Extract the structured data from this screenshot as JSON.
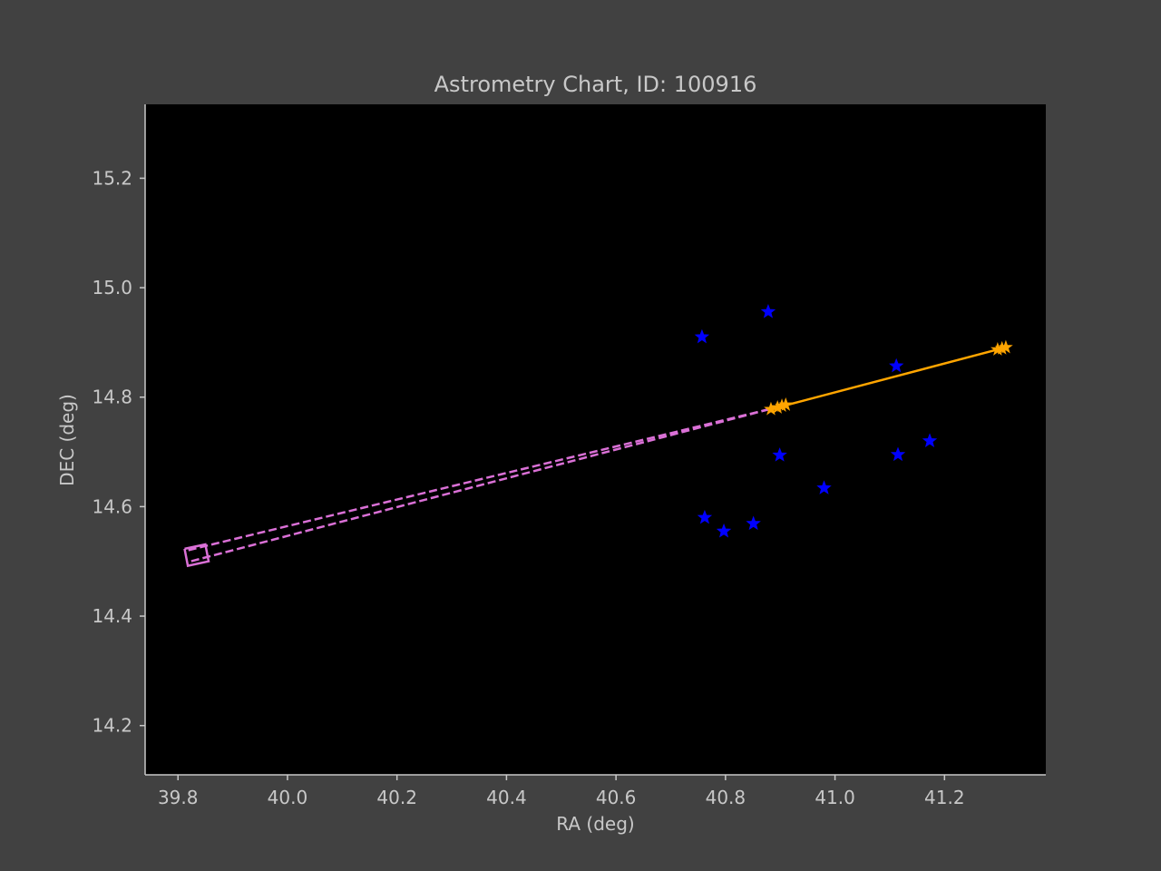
{
  "chart_data": {
    "type": "scatter",
    "title": "Astrometry Chart, ID: 100916",
    "xlabel": "RA (deg)",
    "ylabel": "DEC (deg)",
    "xlim": [
      39.74,
      41.385
    ],
    "ylim": [
      14.11,
      15.335
    ],
    "x_ticks": [
      39.8,
      40.0,
      40.2,
      40.4,
      40.6,
      40.8,
      41.0,
      41.2
    ],
    "x_tick_labels": [
      "39.8",
      "40.0",
      "40.2",
      "40.4",
      "40.6",
      "40.8",
      "41.0",
      "41.2"
    ],
    "y_ticks": [
      14.2,
      14.4,
      14.6,
      14.8,
      15.0,
      15.2
    ],
    "y_tick_labels": [
      "14.2",
      "14.4",
      "14.6",
      "14.8",
      "15.0",
      "15.2"
    ],
    "grid": false,
    "colors": {
      "figure_background": "#414141",
      "plot_background": "#000000",
      "axes_text": "#c8c8c8",
      "field_stars": "#0000ff",
      "track": "#ffa500",
      "projection": "#da70d6"
    },
    "field_stars": {
      "marker": "star",
      "x": [
        40.757,
        40.878,
        41.112,
        40.899,
        41.115,
        41.173,
        40.98,
        40.762,
        40.797,
        40.851
      ],
      "y": [
        14.91,
        14.956,
        14.857,
        14.694,
        14.695,
        14.72,
        14.634,
        14.58,
        14.555,
        14.569
      ]
    },
    "track_points": {
      "marker": "star",
      "x": [
        40.883,
        40.895,
        40.903,
        40.91,
        41.297,
        41.305,
        41.312
      ],
      "y": [
        14.778,
        14.781,
        14.784,
        14.786,
        14.887,
        14.889,
        14.891
      ]
    },
    "track_line": {
      "style": "solid",
      "x": [
        40.883,
        41.312
      ],
      "y": [
        14.778,
        14.891
      ]
    },
    "projection_lines": [
      {
        "style": "dashed",
        "x": [
          40.88,
          39.817
        ],
        "y": [
          14.778,
          14.52
        ]
      },
      {
        "style": "dashed",
        "x": [
          40.88,
          39.823
        ],
        "y": [
          14.778,
          14.5
        ]
      }
    ],
    "projection_box": {
      "x": [
        39.812,
        39.85,
        39.856,
        39.818,
        39.812
      ],
      "y": [
        14.523,
        14.531,
        14.5,
        14.492,
        14.523
      ]
    }
  }
}
